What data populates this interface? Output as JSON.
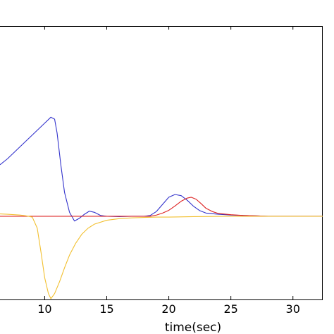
{
  "chart_data": {
    "type": "line",
    "title": "",
    "xlabel": "time(sec)",
    "ylabel": "",
    "xlim": [
      6.4,
      32.4
    ],
    "ylim": [
      -2.1,
      4.8
    ],
    "grid": false,
    "legend": "none",
    "x_ticks": [
      {
        "value": 10,
        "label": "10"
      },
      {
        "value": 15,
        "label": "15"
      },
      {
        "value": 20,
        "label": "20"
      },
      {
        "value": 25,
        "label": "25"
      },
      {
        "value": 30,
        "label": "30"
      }
    ],
    "series": [
      {
        "color": "#3333cc",
        "points": [
          [
            6.4,
            1.3
          ],
          [
            7.0,
            1.45
          ],
          [
            8.0,
            1.75
          ],
          [
            9.0,
            2.05
          ],
          [
            10.0,
            2.35
          ],
          [
            10.5,
            2.5
          ],
          [
            10.8,
            2.45
          ],
          [
            11.0,
            2.1
          ],
          [
            11.3,
            1.3
          ],
          [
            11.6,
            0.6
          ],
          [
            12.0,
            0.1
          ],
          [
            12.4,
            -0.12
          ],
          [
            12.8,
            -0.05
          ],
          [
            13.2,
            0.05
          ],
          [
            13.6,
            0.13
          ],
          [
            14.0,
            0.1
          ],
          [
            14.5,
            0.02
          ],
          [
            15.0,
            0.0
          ],
          [
            16.0,
            -0.01
          ],
          [
            17.0,
            0.0
          ],
          [
            18.0,
            0.0
          ],
          [
            18.5,
            0.02
          ],
          [
            19.0,
            0.12
          ],
          [
            19.5,
            0.3
          ],
          [
            20.0,
            0.48
          ],
          [
            20.5,
            0.55
          ],
          [
            21.0,
            0.52
          ],
          [
            21.5,
            0.4
          ],
          [
            22.0,
            0.25
          ],
          [
            22.5,
            0.14
          ],
          [
            23.0,
            0.08
          ],
          [
            24.0,
            0.05
          ],
          [
            25.0,
            0.03
          ],
          [
            26.0,
            0.02
          ],
          [
            27.0,
            0.01
          ],
          [
            28.0,
            0.0
          ],
          [
            30.0,
            0.0
          ],
          [
            32.4,
            0.0
          ]
        ]
      },
      {
        "color": "#dd2222",
        "points": [
          [
            6.4,
            0.0
          ],
          [
            18.5,
            0.0
          ],
          [
            19.0,
            0.03
          ],
          [
            19.5,
            0.08
          ],
          [
            20.0,
            0.15
          ],
          [
            20.5,
            0.26
          ],
          [
            21.0,
            0.38
          ],
          [
            21.5,
            0.46
          ],
          [
            21.8,
            0.48
          ],
          [
            22.2,
            0.43
          ],
          [
            22.6,
            0.32
          ],
          [
            23.0,
            0.2
          ],
          [
            23.5,
            0.12
          ],
          [
            24.0,
            0.07
          ],
          [
            25.0,
            0.04
          ],
          [
            26.0,
            0.02
          ],
          [
            27.0,
            0.01
          ],
          [
            28.0,
            0.0
          ],
          [
            32.4,
            0.0
          ]
        ]
      },
      {
        "color": "#f2c030",
        "points": [
          [
            6.4,
            0.06
          ],
          [
            7.0,
            0.05
          ],
          [
            8.0,
            0.03
          ],
          [
            8.5,
            0.01
          ],
          [
            9.0,
            -0.02
          ],
          [
            9.4,
            -0.3
          ],
          [
            9.7,
            -0.9
          ],
          [
            10.0,
            -1.55
          ],
          [
            10.3,
            -1.95
          ],
          [
            10.5,
            -2.08
          ],
          [
            10.8,
            -1.95
          ],
          [
            11.2,
            -1.65
          ],
          [
            11.6,
            -1.3
          ],
          [
            12.0,
            -0.98
          ],
          [
            12.5,
            -0.68
          ],
          [
            13.0,
            -0.45
          ],
          [
            13.5,
            -0.3
          ],
          [
            14.0,
            -0.2
          ],
          [
            15.0,
            -0.1
          ],
          [
            16.0,
            -0.06
          ],
          [
            17.0,
            -0.04
          ],
          [
            18.0,
            -0.03
          ],
          [
            19.0,
            -0.02
          ],
          [
            20.0,
            -0.02
          ],
          [
            22.0,
            -0.01
          ],
          [
            25.0,
            0.0
          ],
          [
            32.4,
            0.0
          ]
        ]
      }
    ]
  }
}
